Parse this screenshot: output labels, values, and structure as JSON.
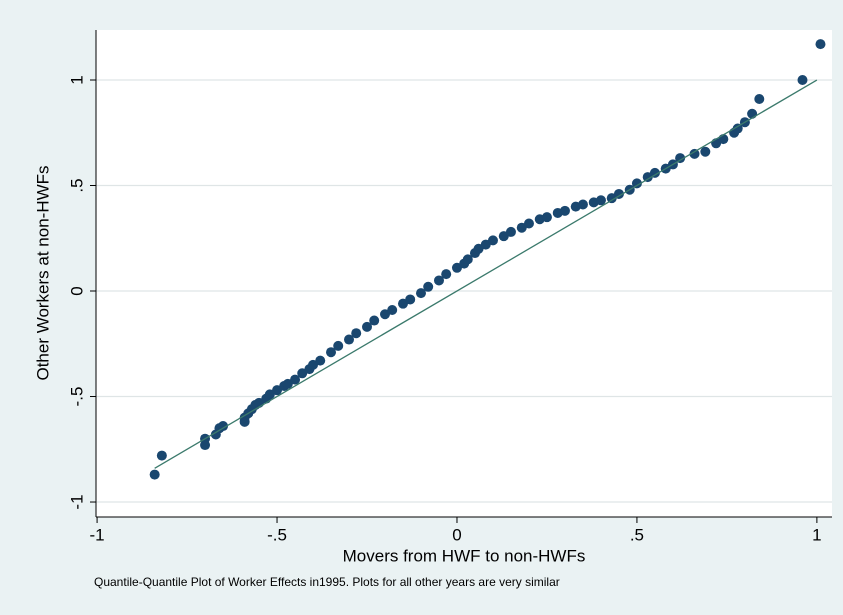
{
  "chart_data": {
    "type": "scatter",
    "x_label": "Movers from HWF to non-HWFs",
    "y_label": "Other Workers at non-HWFs",
    "note": "Quantile-Quantile Plot of Worker Effects in1995. Plots for all other years are very similar",
    "xlim": [
      -1.003,
      1.042
    ],
    "ylim": [
      -1.071,
      1.237
    ],
    "xticks": [
      -1,
      {
        "value": -0.5,
        "label": "-.5"
      },
      0,
      {
        "value": 0.5,
        "label": ".5"
      },
      1
    ],
    "yticks": [
      -1,
      {
        "value": -0.5,
        "label": "-.5"
      },
      0,
      {
        "value": 0.5,
        "label": ".5"
      },
      1
    ],
    "grid": true,
    "series": [
      {
        "type": "scatter",
        "color": "#1a476f",
        "x": [
          -0.84,
          -0.82,
          -0.7,
          -0.7,
          -0.67,
          -0.66,
          -0.65,
          -0.59,
          -0.59,
          -0.58,
          -0.57,
          -0.56,
          -0.55,
          -0.53,
          -0.52,
          -0.5,
          -0.48,
          -0.47,
          -0.45,
          -0.43,
          -0.41,
          -0.4,
          -0.38,
          -0.35,
          -0.33,
          -0.3,
          -0.28,
          -0.25,
          -0.23,
          -0.2,
          -0.18,
          -0.15,
          -0.13,
          -0.1,
          -0.08,
          -0.05,
          -0.03,
          0,
          0.02,
          0.03,
          0.05,
          0.06,
          0.08,
          0.1,
          0.13,
          0.15,
          0.18,
          0.2,
          0.23,
          0.25,
          0.28,
          0.3,
          0.33,
          0.35,
          0.38,
          0.4,
          0.43,
          0.45,
          0.48,
          0.5,
          0.53,
          0.55,
          0.58,
          0.6,
          0.62,
          0.66,
          0.69,
          0.72,
          0.74,
          0.77,
          0.78,
          0.8,
          0.82,
          0.84,
          0.96,
          1.01
        ],
        "values": [
          -0.87,
          -0.78,
          -0.73,
          -0.7,
          -0.68,
          -0.65,
          -0.64,
          -0.62,
          -0.6,
          -0.58,
          -0.56,
          -0.54,
          -0.53,
          -0.51,
          -0.49,
          -0.47,
          -0.45,
          -0.44,
          -0.42,
          -0.39,
          -0.37,
          -0.35,
          -0.33,
          -0.29,
          -0.26,
          -0.23,
          -0.2,
          -0.17,
          -0.14,
          -0.11,
          -0.09,
          -0.06,
          -0.04,
          -0.01,
          0.02,
          0.05,
          0.08,
          0.11,
          0.13,
          0.15,
          0.18,
          0.2,
          0.22,
          0.24,
          0.26,
          0.28,
          0.3,
          0.32,
          0.34,
          0.35,
          0.37,
          0.38,
          0.4,
          0.41,
          0.42,
          0.43,
          0.44,
          0.46,
          0.48,
          0.51,
          0.54,
          0.56,
          0.58,
          0.6,
          0.63,
          0.65,
          0.66,
          0.7,
          0.72,
          0.75,
          0.77,
          0.8,
          0.84,
          0.91,
          1.0,
          1.17
        ]
      },
      {
        "type": "line",
        "color": "#3b7a6c",
        "x": [
          -0.84,
          1.0
        ],
        "values": [
          -0.84,
          1.0
        ]
      }
    ]
  }
}
